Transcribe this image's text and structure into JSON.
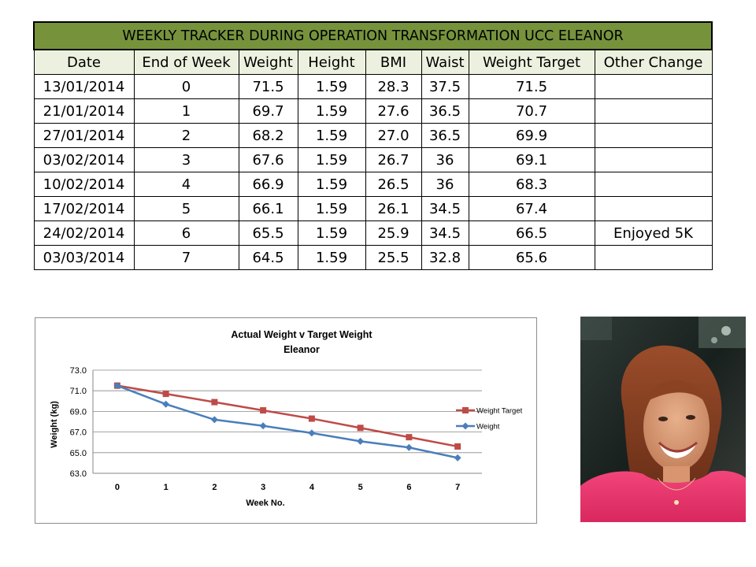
{
  "table": {
    "title": "WEEKLY TRACKER DURING OPERATION TRANSFORMATION UCC ELEANOR",
    "headers": [
      "Date",
      "End of Week",
      "Weight",
      "Height",
      "BMI",
      "Waist",
      "Weight Target",
      "Other Change"
    ],
    "rows": [
      [
        "13/01/2014",
        "0",
        "71.5",
        "1.59",
        "28.3",
        "37.5",
        "71.5",
        ""
      ],
      [
        "21/01/2014",
        "1",
        "69.7",
        "1.59",
        "27.6",
        "36.5",
        "70.7",
        ""
      ],
      [
        "27/01/2014",
        "2",
        "68.2",
        "1.59",
        "27.0",
        "36.5",
        "69.9",
        ""
      ],
      [
        "03/02/2014",
        "3",
        "67.6",
        "1.59",
        "26.7",
        "36",
        "69.1",
        ""
      ],
      [
        "10/02/2014",
        "4",
        "66.9",
        "1.59",
        "26.5",
        "36",
        "68.3",
        ""
      ],
      [
        "17/02/2014",
        "5",
        "66.1",
        "1.59",
        "26.1",
        "34.5",
        "67.4",
        ""
      ],
      [
        "24/02/2014",
        "6",
        "65.5",
        "1.59",
        "25.9",
        "34.5",
        "66.5",
        "Enjoyed 5K"
      ],
      [
        "03/03/2014",
        "7",
        "64.5",
        "1.59",
        "25.5",
        "32.8",
        "65.6",
        ""
      ]
    ],
    "colors": {
      "title_bg": "#76933c",
      "header_bg": "#ebf1de"
    }
  },
  "chart_data": {
    "type": "line",
    "title": "Actual Weight v Target Weight",
    "subtitle": "Eleanor",
    "xlabel": "Week No.",
    "ylabel": "Weight (kg)",
    "x": [
      0,
      1,
      2,
      3,
      4,
      5,
      6,
      7
    ],
    "ylim": [
      63.0,
      73.0
    ],
    "yticks": [
      "73.0",
      "71.0",
      "69.0",
      "67.0",
      "65.0",
      "63.0"
    ],
    "ytick_values": [
      73,
      71,
      69,
      67,
      65,
      63
    ],
    "grid": true,
    "legend": "right",
    "series": [
      {
        "name": "Weight Target",
        "values": [
          71.5,
          70.7,
          69.9,
          69.1,
          68.3,
          67.4,
          66.5,
          65.6
        ],
        "color": "#be4b48",
        "marker": "square"
      },
      {
        "name": "Weight",
        "values": [
          71.5,
          69.7,
          68.2,
          67.6,
          66.9,
          66.1,
          65.5,
          64.5
        ],
        "color": "#4a7ebb",
        "marker": "diamond"
      }
    ]
  },
  "photo": {
    "subject": "portrait-photo"
  }
}
